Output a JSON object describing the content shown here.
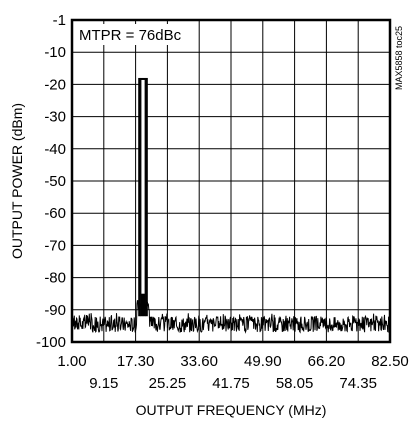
{
  "chart_data": {
    "type": "line",
    "title": "",
    "xlabel": "OUTPUT FREQUENCY (MHz)",
    "ylabel": "OUTPUT POWER (dBm)",
    "xlim": [
      1.0,
      82.5
    ],
    "ylim": [
      -100,
      -1
    ],
    "x_ticks_top_row": [
      "1.00",
      "17.30",
      "33.60",
      "49.90",
      "66.20",
      "82.50"
    ],
    "x_ticks_bottom_row": [
      "9.15",
      "25.25",
      "41.75",
      "58.05",
      "74.35"
    ],
    "y_ticks": [
      "-1",
      "-10",
      "-20",
      "-30",
      "-40",
      "-50",
      "-60",
      "-70",
      "-80",
      "-90",
      "-100"
    ],
    "grid": true,
    "annotation": "MTPR = 76dBc",
    "side_label": "MAX5858 toc25",
    "series": [
      {
        "tones": [
          {
            "x": 18.3,
            "y": -18
          },
          {
            "x": 18.9,
            "y": -18
          },
          {
            "x": 19.5,
            "y": -18
          },
          {
            "x": 20.1,
            "y": -18
          }
        ],
        "missing_tone": {
          "x": 19.2,
          "y": -85
        },
        "noise_floor": {
          "min": -97,
          "max": -92
        }
      }
    ]
  }
}
